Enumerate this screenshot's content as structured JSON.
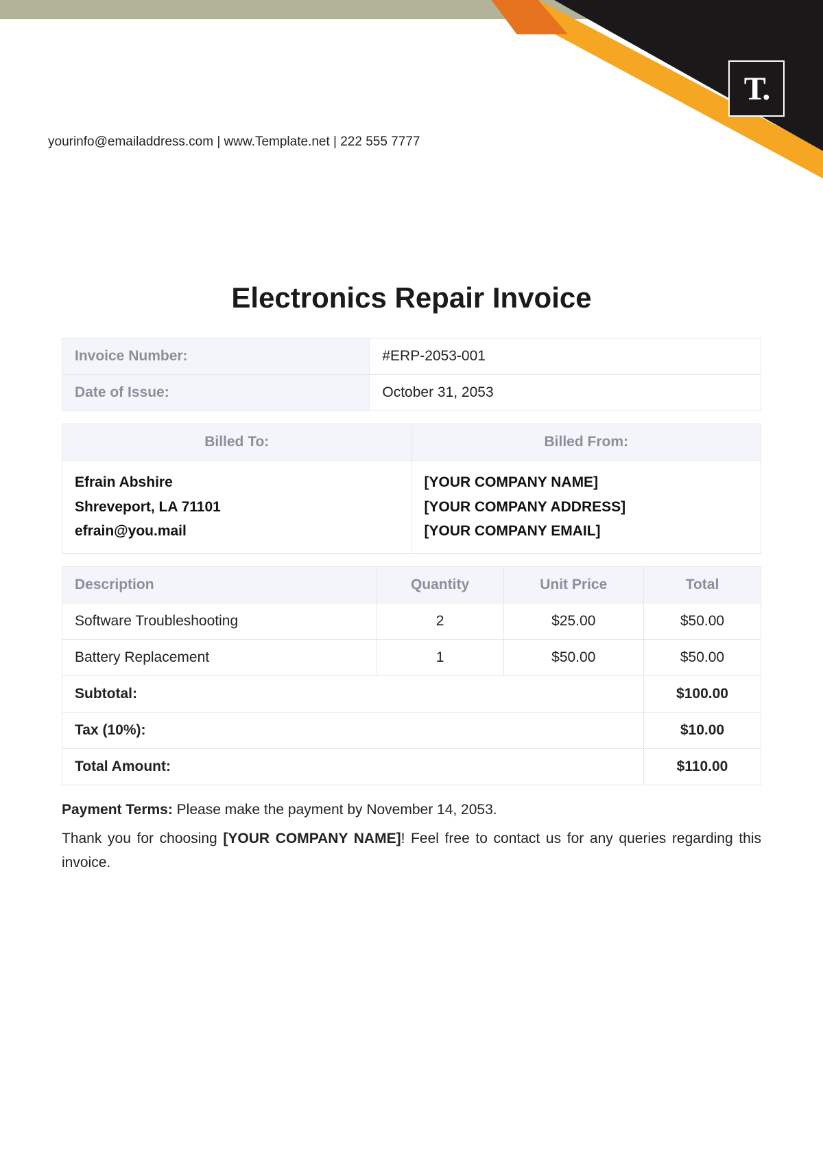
{
  "header": {
    "contact_line": "yourinfo@emailaddress.com  |  www.Template.net  |  222 555 7777",
    "logo_text": "T."
  },
  "title": "Electronics Repair Invoice",
  "meta": {
    "invoice_number_label": "Invoice Number:",
    "invoice_number_value": "#ERP-2053-001",
    "date_label": "Date of Issue:",
    "date_value": "October 31, 2053"
  },
  "parties": {
    "billed_to_label": "Billed To:",
    "billed_from_label": "Billed From:",
    "billed_to": {
      "line1": "Efrain Abshire",
      "line2": "Shreveport, LA 71101",
      "line3": "efrain@you.mail"
    },
    "billed_from": {
      "line1": "[YOUR COMPANY NAME]",
      "line2": "[YOUR COMPANY ADDRESS]",
      "line3": "[YOUR COMPANY EMAIL]"
    }
  },
  "items_table": {
    "headers": {
      "description": "Description",
      "quantity": "Quantity",
      "unit_price": "Unit Price",
      "total": "Total"
    },
    "rows": [
      {
        "description": "Software Troubleshooting",
        "quantity": "2",
        "unit_price": "$25.00",
        "total": "$50.00"
      },
      {
        "description": "Battery Replacement",
        "quantity": "1",
        "unit_price": "$50.00",
        "total": "$50.00"
      }
    ],
    "summary": {
      "subtotal_label": "Subtotal:",
      "subtotal_value": "$100.00",
      "tax_label": "Tax (10%):",
      "tax_value": "$10.00",
      "total_label": "Total Amount:",
      "total_value": "$110.00"
    }
  },
  "footer": {
    "payment_terms_label": "Payment Terms:",
    "payment_terms_text": " Please make the payment by November 14, 2053.",
    "thank_you_pre": "Thank you for choosing ",
    "thank_you_company": "[YOUR COMPANY NAME]",
    "thank_you_post": "! Feel free to contact us for any queries regarding this invoice."
  },
  "colors": {
    "top_bar": "#b3b39a",
    "black_shape": "#1a1818",
    "orange_shape": "#f5a623",
    "orange_dark": "#e8731e",
    "header_bg": "#f4f5fa",
    "header_text": "#8b8f9a",
    "border": "#e6e6eb",
    "body_text": "#222222"
  }
}
